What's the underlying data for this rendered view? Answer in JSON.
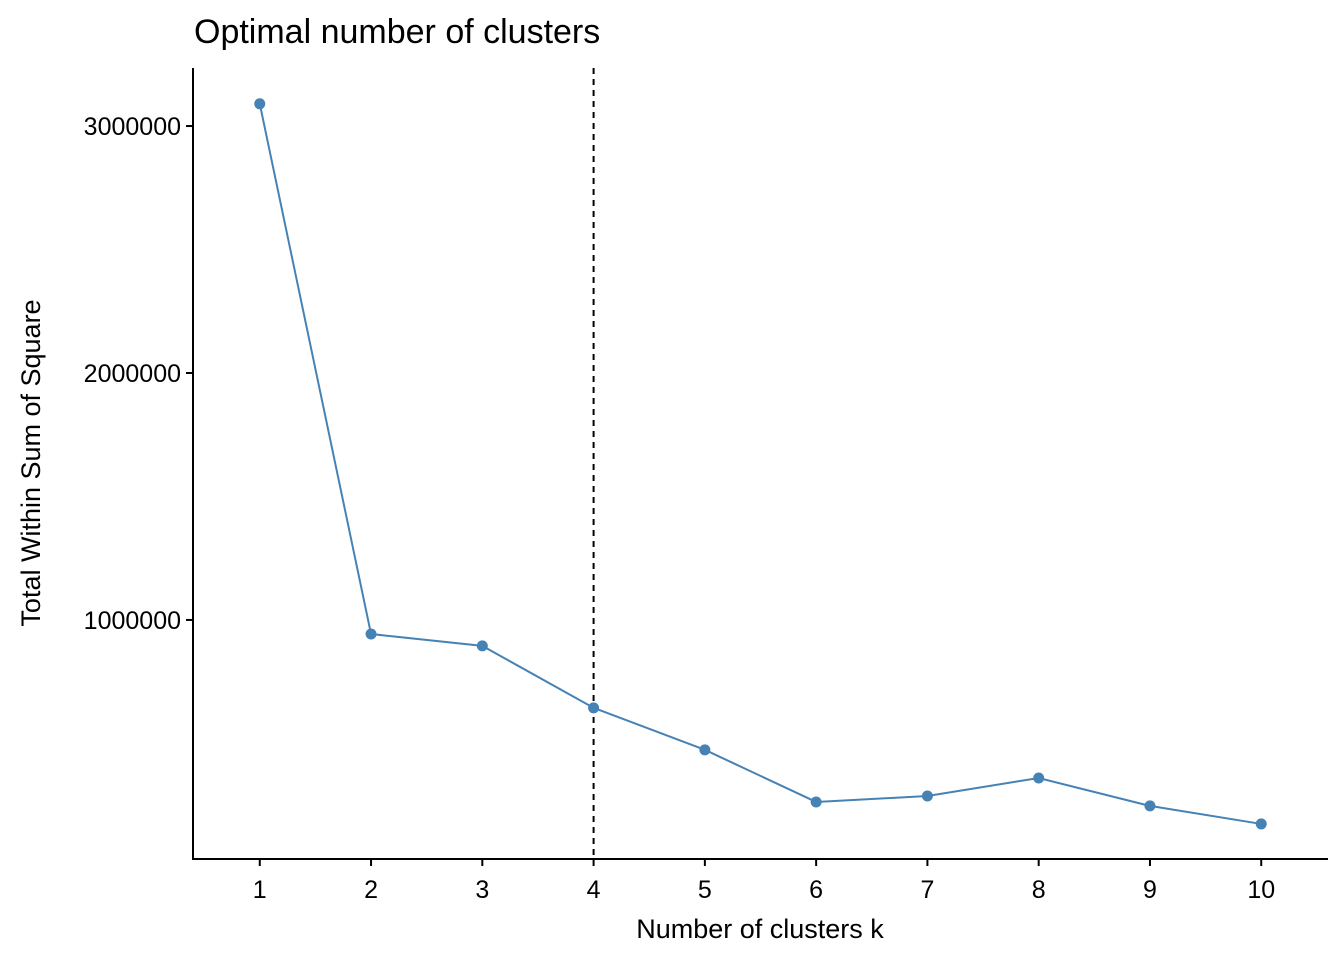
{
  "chart_data": {
    "type": "line",
    "title": "Optimal number of clusters",
    "x_label": "Number of clusters k",
    "y_label": "Total Within Sum of Square",
    "x": [
      1,
      2,
      3,
      4,
      5,
      6,
      7,
      8,
      9,
      10
    ],
    "series": [
      {
        "name": "Total Within Sum of Square",
        "color": "#4682b4",
        "values": [
          3090000,
          943000,
          895000,
          644000,
          474000,
          263000,
          287000,
          360000,
          247000,
          174000
        ]
      }
    ],
    "xlim": [
      0.4,
      10.6
    ],
    "xticks": [
      1,
      2,
      3,
      4,
      5,
      6,
      7,
      8,
      9,
      10
    ],
    "ylim": [
      32000,
      3235000
    ],
    "yticks": [
      1000000,
      2000000,
      3000000
    ],
    "reference_x": 4,
    "grid": false
  }
}
